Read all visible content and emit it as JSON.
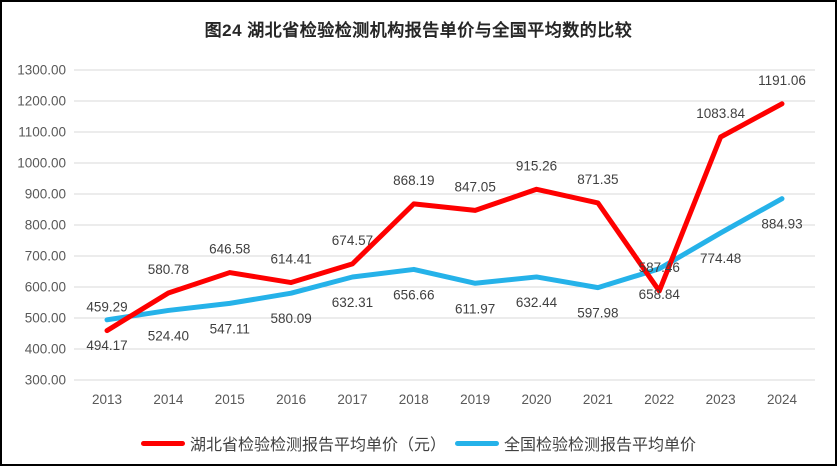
{
  "figure": {
    "title": "图24 湖北省检验检测机构报告单价与全国平均数的比较"
  },
  "chart_data": {
    "type": "line",
    "title": "图24 湖北省检验检测机构报告单价与全国平均数的比较",
    "categories": [
      "2013",
      "2014",
      "2015",
      "2016",
      "2017",
      "2018",
      "2019",
      "2020",
      "2021",
      "2022",
      "2023",
      "2024"
    ],
    "series": [
      {
        "name": "湖北省检验检测报告平均单价（元）",
        "color": "#fe0000",
        "label_position": "above",
        "values": [
          459.29,
          580.78,
          646.58,
          614.41,
          674.57,
          868.19,
          847.05,
          915.26,
          871.35,
          587.46,
          1083.84,
          1191.06
        ]
      },
      {
        "name": "全国检验检测报告平均单价",
        "color": "#25b2e9",
        "label_position": "below",
        "values": [
          494.17,
          524.4,
          547.11,
          580.09,
          632.31,
          656.66,
          611.97,
          632.44,
          597.98,
          658.84,
          774.48,
          884.93
        ]
      }
    ],
    "ylim": [
      300,
      1300
    ],
    "y_tick_step": 100,
    "y_tick_labels": [
      "300.00",
      "400.00",
      "500.00",
      "600.00",
      "700.00",
      "800.00",
      "900.00",
      "1000.00",
      "1100.00",
      "1200.00",
      "1300.00"
    ],
    "grid": true,
    "legend_position": "bottom",
    "value_decimals": 2
  },
  "colors": {
    "grid": "#d9d9d9",
    "axis_text": "#595959",
    "data_label": "#404040",
    "border": "#000000",
    "background": "#ffffff"
  }
}
